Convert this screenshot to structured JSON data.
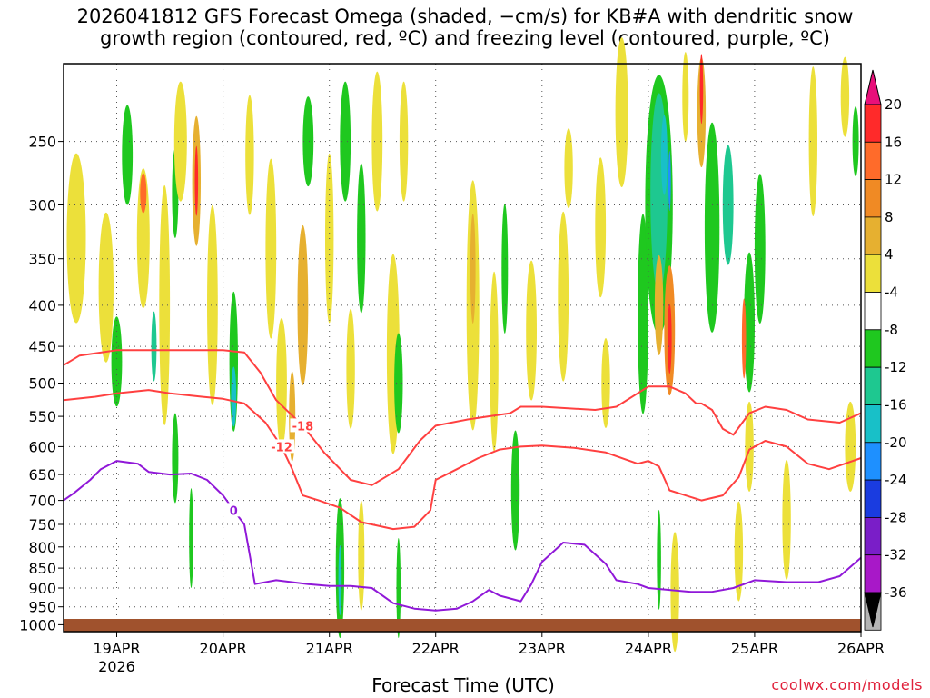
{
  "title_line1": "2026041812 GFS Forecast Omega (shaded, −cm/s) for KB#A with dendritic snow",
  "title_line2": "growth region (contoured, red, ºC) and freezing level (contoured, purple, ºC)",
  "x_axis_label": "Forecast Time (UTC)",
  "credit": "coolwx.com/models",
  "chart_data": {
    "type": "heatmap",
    "x_ticks": [
      "19APR",
      "20APR",
      "21APR",
      "22APR",
      "23APR",
      "24APR",
      "25APR",
      "26APR"
    ],
    "x_year_label": "2026",
    "y_ticks": [
      250,
      300,
      350,
      400,
      450,
      500,
      550,
      600,
      650,
      700,
      750,
      800,
      850,
      900,
      950,
      1000
    ],
    "y_scale": "log",
    "y_reversed": true,
    "ylim": [
      200,
      1020
    ],
    "xlim_days": [
      18.5,
      26.0
    ],
    "grid": true,
    "colorbar": {
      "labels": [
        20,
        16,
        12,
        8,
        4,
        -4,
        -8,
        -12,
        -16,
        -20,
        -24,
        -28,
        -32,
        -36
      ],
      "colors": [
        "#ff2a2a",
        "#ff6b2a",
        "#f08a24",
        "#e6b030",
        "#ece03a",
        "#ffffff",
        "#1fc81f",
        "#1ec890",
        "#18c0c8",
        "#1e90ff",
        "#1a3ce0",
        "#7a1ec8",
        "#a818c8",
        "#b4b4b4"
      ],
      "top_color": "#e8107a",
      "bottom_color": "#000000"
    },
    "contours": [
      {
        "label": "-18",
        "color": "#ff4040",
        "points": [
          [
            18.5,
            475
          ],
          [
            18.65,
            462
          ],
          [
            19.0,
            455
          ],
          [
            19.5,
            455
          ],
          [
            20.0,
            455
          ],
          [
            20.2,
            458
          ],
          [
            20.35,
            485
          ],
          [
            20.5,
            525
          ],
          [
            20.75,
            565
          ],
          [
            20.95,
            610
          ],
          [
            21.2,
            660
          ],
          [
            21.4,
            670
          ],
          [
            21.65,
            640
          ],
          [
            21.85,
            590
          ],
          [
            22.0,
            565
          ],
          [
            22.3,
            555
          ],
          [
            22.7,
            545
          ],
          [
            22.8,
            535
          ],
          [
            23.0,
            535
          ],
          [
            23.5,
            540
          ],
          [
            23.7,
            535
          ],
          [
            24.0,
            505
          ],
          [
            24.2,
            505
          ],
          [
            24.35,
            515
          ],
          [
            24.45,
            530
          ],
          [
            24.5,
            530
          ],
          [
            24.6,
            540
          ],
          [
            24.7,
            570
          ],
          [
            24.8,
            580
          ],
          [
            24.95,
            545
          ],
          [
            25.1,
            535
          ],
          [
            25.3,
            540
          ],
          [
            25.5,
            555
          ],
          [
            25.8,
            560
          ],
          [
            26.0,
            545
          ]
        ]
      },
      {
        "label": "-12",
        "color": "#ff4040",
        "points": [
          [
            18.5,
            525
          ],
          [
            18.8,
            520
          ],
          [
            19.0,
            515
          ],
          [
            19.3,
            510
          ],
          [
            19.5,
            515
          ],
          [
            19.8,
            520
          ],
          [
            20.0,
            523
          ],
          [
            20.2,
            530
          ],
          [
            20.4,
            560
          ],
          [
            20.55,
            600
          ],
          [
            20.65,
            640
          ],
          [
            20.75,
            690
          ],
          [
            20.9,
            700
          ],
          [
            21.1,
            715
          ],
          [
            21.3,
            745
          ],
          [
            21.6,
            760
          ],
          [
            21.8,
            755
          ],
          [
            21.95,
            720
          ],
          [
            22.0,
            660
          ],
          [
            22.2,
            640
          ],
          [
            22.4,
            620
          ],
          [
            22.6,
            605
          ],
          [
            22.8,
            600
          ],
          [
            23.0,
            598
          ],
          [
            23.3,
            602
          ],
          [
            23.6,
            610
          ],
          [
            23.9,
            630
          ],
          [
            24.0,
            625
          ],
          [
            24.1,
            635
          ],
          [
            24.2,
            680
          ],
          [
            24.5,
            700
          ],
          [
            24.7,
            690
          ],
          [
            24.85,
            655
          ],
          [
            24.95,
            605
          ],
          [
            25.1,
            590
          ],
          [
            25.3,
            600
          ],
          [
            25.5,
            630
          ],
          [
            25.7,
            640
          ],
          [
            26.0,
            620
          ]
        ]
      },
      {
        "label": "0",
        "color": "#9018d8",
        "points": [
          [
            18.5,
            700
          ],
          [
            18.6,
            685
          ],
          [
            18.75,
            660
          ],
          [
            18.85,
            640
          ],
          [
            19.0,
            625
          ],
          [
            19.2,
            630
          ],
          [
            19.3,
            645
          ],
          [
            19.5,
            650
          ],
          [
            19.7,
            648
          ],
          [
            19.85,
            660
          ],
          [
            20.0,
            690
          ],
          [
            20.1,
            720
          ],
          [
            20.2,
            750
          ],
          [
            20.3,
            890
          ],
          [
            20.5,
            880
          ],
          [
            20.8,
            890
          ],
          [
            21.0,
            895
          ],
          [
            21.2,
            895
          ],
          [
            21.4,
            900
          ],
          [
            21.6,
            940
          ],
          [
            21.8,
            955
          ],
          [
            22.0,
            960
          ],
          [
            22.2,
            955
          ],
          [
            22.35,
            935
          ],
          [
            22.5,
            905
          ],
          [
            22.6,
            920
          ],
          [
            22.8,
            935
          ],
          [
            22.9,
            890
          ],
          [
            23.0,
            835
          ],
          [
            23.2,
            790
          ],
          [
            23.4,
            795
          ],
          [
            23.6,
            840
          ],
          [
            23.7,
            880
          ],
          [
            23.9,
            890
          ],
          [
            24.0,
            900
          ],
          [
            24.2,
            905
          ],
          [
            24.4,
            910
          ],
          [
            24.6,
            910
          ],
          [
            24.8,
            900
          ],
          [
            25.0,
            880
          ],
          [
            25.3,
            885
          ],
          [
            25.6,
            885
          ],
          [
            25.8,
            870
          ],
          [
            26.0,
            825
          ]
        ]
      }
    ]
  }
}
